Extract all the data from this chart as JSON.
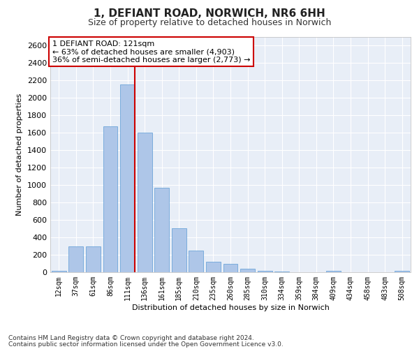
{
  "title": "1, DEFIANT ROAD, NORWICH, NR6 6HH",
  "subtitle": "Size of property relative to detached houses in Norwich",
  "xlabel": "Distribution of detached houses by size in Norwich",
  "ylabel": "Number of detached properties",
  "footnote1": "Contains HM Land Registry data © Crown copyright and database right 2024.",
  "footnote2": "Contains public sector information licensed under the Open Government Licence v3.0.",
  "annotation_line1": "1 DEFIANT ROAD: 121sqm",
  "annotation_line2": "← 63% of detached houses are smaller (4,903)",
  "annotation_line3": "36% of semi-detached houses are larger (2,773) →",
  "bar_categories": [
    "12sqm",
    "37sqm",
    "61sqm",
    "86sqm",
    "111sqm",
    "136sqm",
    "161sqm",
    "185sqm",
    "210sqm",
    "235sqm",
    "260sqm",
    "285sqm",
    "310sqm",
    "334sqm",
    "359sqm",
    "384sqm",
    "409sqm",
    "434sqm",
    "458sqm",
    "483sqm",
    "508sqm"
  ],
  "bar_values": [
    20,
    300,
    300,
    1670,
    2150,
    1600,
    970,
    505,
    245,
    120,
    95,
    40,
    20,
    8,
    3,
    3,
    15,
    3,
    3,
    0,
    15
  ],
  "bar_color": "#aec6e8",
  "bar_edge_color": "#5b9bd5",
  "vline_color": "#cc0000",
  "vline_x_idx": 4,
  "ylim": [
    0,
    2700
  ],
  "yticks": [
    0,
    200,
    400,
    600,
    800,
    1000,
    1200,
    1400,
    1600,
    1800,
    2000,
    2200,
    2400,
    2600
  ],
  "bg_color": "#e8eef7",
  "fig_bg_color": "#ffffff",
  "grid_color": "#ffffff",
  "annotation_box_facecolor": "#ffffff",
  "annotation_box_edgecolor": "#cc0000",
  "title_fontsize": 11,
  "subtitle_fontsize": 9,
  "ylabel_fontsize": 8,
  "xlabel_fontsize": 8,
  "tick_fontsize": 8,
  "xtick_fontsize": 7,
  "footnote_fontsize": 6.5,
  "annotation_fontsize": 8
}
